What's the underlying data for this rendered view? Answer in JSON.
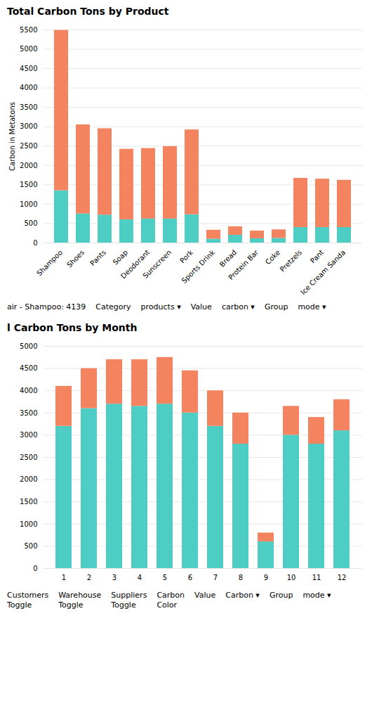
{
  "chart_data": [
    {
      "type": "bar",
      "stacked": true,
      "title": "Total Carbon Tons by Product",
      "ylabel": "Carbon in Metatons",
      "categories": [
        "Shampoo",
        "Shoes",
        "Pants",
        "Soap",
        "Deodorant",
        "Sunscreen",
        "Pork",
        "Sports Drink",
        "Bread",
        "Protein Bar",
        "Coke",
        "Pretzels",
        "Pant",
        "Ice Cream Sanda"
      ],
      "series": [
        {
          "color": "#4ecdc4",
          "values": [
            1350,
            750,
            720,
            600,
            620,
            620,
            730,
            100,
            200,
            110,
            120,
            400,
            400,
            400
          ]
        },
        {
          "color": "#f4845f",
          "values": [
            4139,
            2300,
            2230,
            1820,
            1820,
            1870,
            2190,
            230,
            220,
            200,
            220,
            1270,
            1250,
            1220
          ]
        }
      ],
      "ylim": [
        0,
        5500
      ],
      "yticks": [
        0,
        500,
        1000,
        1500,
        2000,
        2500,
        3000,
        3500,
        4000,
        4500,
        5000,
        5500
      ],
      "grid": true,
      "annotations": [
        "air - Shampoo: 4139",
        "Category",
        "products  ▾",
        "Value",
        "carbon  ▾",
        "Group",
        "mode  ▾"
      ]
    },
    {
      "type": "bar",
      "stacked": true,
      "title": "l Carbon Tons by Month",
      "categories": [
        "1",
        "2",
        "3",
        "4",
        "5",
        "6",
        "7",
        "8",
        "9",
        "10",
        "11",
        "12"
      ],
      "series": [
        {
          "color": "#4ecdc4",
          "values": [
            3200,
            3600,
            3700,
            3650,
            3700,
            3500,
            3200,
            2800,
            600,
            3000,
            2800,
            3100
          ]
        },
        {
          "color": "#f4845f",
          "values": [
            900,
            900,
            1000,
            1050,
            1050,
            950,
            800,
            700,
            200,
            650,
            600,
            700
          ]
        }
      ],
      "ylim": [
        0,
        5000
      ],
      "yticks": [
        0,
        500,
        1000,
        1500,
        2000,
        2500,
        3000,
        3500,
        4000,
        4500,
        5000
      ],
      "grid": true,
      "annotations": [
        "Customers\nToggle",
        "Warehouse\nToggle",
        "Suppliers\nToggle",
        "Carbon\nColor",
        "Value",
        "Carbon  ▾",
        "Group",
        "mode  ▾"
      ]
    }
  ]
}
